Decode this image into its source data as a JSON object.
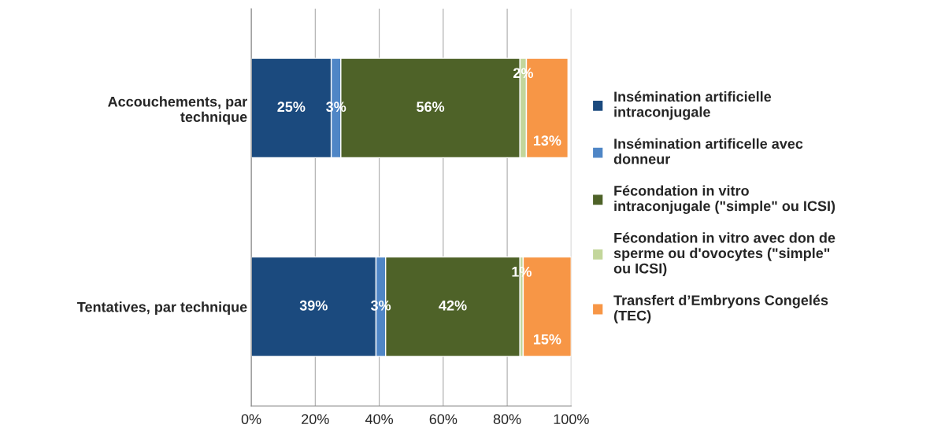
{
  "chart_data": {
    "type": "bar",
    "orientation": "horizontal",
    "stacked": true,
    "categories": [
      "Accouchements, par\ntechnique",
      "Tentatives, par technique"
    ],
    "series": [
      {
        "name": "Insémination artificielle\nintraconjugale",
        "color": "#1b4a7e",
        "values": [
          25,
          39
        ],
        "value_labels": [
          "25%",
          "39%"
        ]
      },
      {
        "name": "Insémination artificelle avec\ndonneur",
        "color": "#4f86c6",
        "values": [
          3,
          3
        ],
        "value_labels": [
          "3%",
          "3%"
        ]
      },
      {
        "name": "Fécondation in vitro\nintraconjugale (\"simple\" ou ICSI)",
        "color": "#4e6228",
        "values": [
          56,
          42
        ],
        "value_labels": [
          "56%",
          "42%"
        ]
      },
      {
        "name": "Fécondation in vitro avec don de\nsperme ou d'ovocytes (\"simple\"\nou ICSI)",
        "color": "#c3d69b",
        "values": [
          2,
          1
        ],
        "value_labels": [
          "2%",
          "1%"
        ]
      },
      {
        "name": "Transfert d’Embryons Congelés\n(TEC)",
        "color": "#f79646",
        "values": [
          13,
          15
        ],
        "value_labels": [
          "13%",
          "15%"
        ]
      }
    ],
    "xlim": [
      0,
      100
    ],
    "xticks": [
      {
        "value": 0,
        "label": "0%"
      },
      {
        "value": 20,
        "label": "20%"
      },
      {
        "value": 40,
        "label": "40%"
      },
      {
        "value": 60,
        "label": "60%"
      },
      {
        "value": 80,
        "label": "80%"
      },
      {
        "value": 100,
        "label": "100%"
      }
    ],
    "grid": "x",
    "legend": "right"
  }
}
